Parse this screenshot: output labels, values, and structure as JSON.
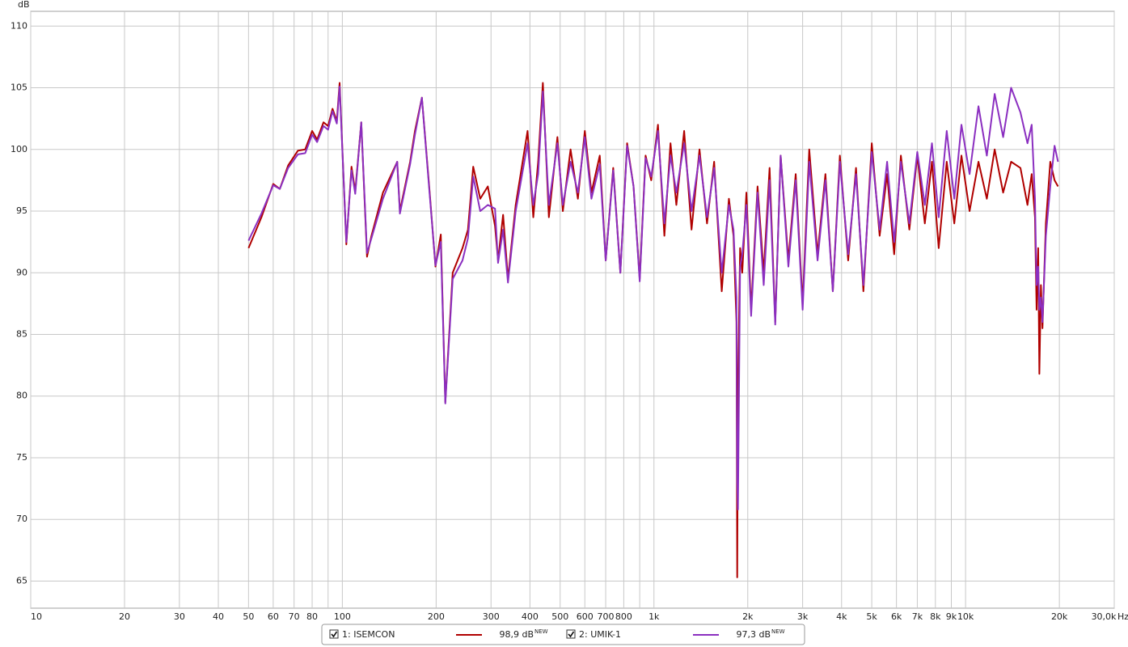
{
  "chart_data": {
    "type": "line",
    "y_label": "dB",
    "x_label": "Hz",
    "x_scale": "log",
    "grid": true,
    "xlim": [
      10,
      30000
    ],
    "ylim": [
      62.8,
      111.2
    ],
    "yticks": [
      65,
      70,
      75,
      80,
      85,
      90,
      95,
      100,
      105,
      110
    ],
    "xticks": [
      10,
      20,
      30,
      40,
      50,
      60,
      70,
      80,
      100,
      200,
      300,
      400,
      500,
      600,
      700,
      800,
      {
        "value": 1000,
        "label": "1k"
      },
      {
        "value": 2000,
        "label": "2k"
      },
      {
        "value": 3000,
        "label": "3k"
      },
      {
        "value": 4000,
        "label": "4k"
      },
      {
        "value": 5000,
        "label": "5k"
      },
      {
        "value": 6000,
        "label": "6k"
      },
      {
        "value": 7000,
        "label": "7k"
      },
      {
        "value": 8000,
        "label": "8k"
      },
      {
        "value": 9000,
        "label": "9k"
      },
      {
        "value": 10000,
        "label": "10k"
      },
      {
        "value": 20000,
        "label": "20k"
      },
      {
        "value": 30000,
        "label": "30,0k"
      }
    ],
    "xminor": [
      90,
      900
    ],
    "x": [
      50,
      55,
      60,
      63,
      67,
      72,
      76,
      80,
      83,
      87,
      90,
      93,
      96,
      98,
      103,
      107,
      110,
      115,
      120,
      124,
      135,
      150,
      153,
      165,
      171,
      180,
      190,
      199,
      207,
      214,
      226,
      243,
      253,
      263,
      277,
      293,
      309,
      316,
      328,
      340,
      360,
      393,
      410,
      425,
      440,
      460,
      490,
      510,
      540,
      570,
      600,
      630,
      670,
      700,
      740,
      780,
      820,
      860,
      900,
      940,
      980,
      1030,
      1080,
      1130,
      1180,
      1250,
      1320,
      1400,
      1480,
      1560,
      1650,
      1740,
      1800,
      1840,
      1850,
      1860,
      1890,
      1920,
      1980,
      2050,
      2150,
      2250,
      2350,
      2450,
      2550,
      2700,
      2850,
      3000,
      3150,
      3350,
      3550,
      3750,
      3950,
      4200,
      4450,
      4700,
      5000,
      5300,
      5600,
      5900,
      6200,
      6600,
      7000,
      7400,
      7800,
      8200,
      8700,
      9200,
      9700,
      10300,
      11000,
      11700,
      12400,
      13200,
      14000,
      15000,
      15800,
      16300,
      16700,
      16900,
      17100,
      17250,
      17450,
      17650,
      18100,
      18700,
      19300,
      19800
    ],
    "series": [
      {
        "name": "1: ISEMCON",
        "color": "#b00000",
        "level_label": "98,9 dB",
        "level_badge": "NEW",
        "values": [
          92.0,
          94.5,
          97.2,
          96.8,
          98.7,
          99.9,
          100.0,
          101.5,
          100.8,
          102.2,
          101.9,
          103.3,
          102.3,
          105.4,
          92.3,
          98.6,
          96.6,
          102.2,
          91.3,
          93.0,
          96.5,
          99.0,
          95.0,
          99.0,
          101.5,
          104.2,
          97.0,
          90.5,
          93.1,
          79.5,
          90.0,
          92.0,
          93.5,
          98.6,
          96.0,
          97.0,
          93.8,
          91.0,
          94.7,
          89.5,
          95.5,
          101.5,
          94.5,
          99.0,
          105.4,
          94.5,
          101.0,
          95.0,
          100.0,
          96.0,
          101.5,
          96.5,
          99.5,
          91.0,
          98.5,
          90.0,
          100.5,
          97.0,
          89.5,
          99.5,
          97.5,
          102.0,
          93.0,
          100.5,
          95.5,
          101.5,
          93.5,
          100.0,
          94.0,
          99.0,
          88.5,
          96.0,
          93.0,
          86.0,
          65.3,
          80.5,
          92.0,
          90.0,
          96.5,
          87.0,
          97.0,
          90.0,
          98.5,
          86.0,
          99.5,
          91.0,
          98.0,
          87.5,
          100.0,
          91.5,
          98.0,
          88.5,
          99.5,
          91.0,
          98.5,
          88.5,
          100.5,
          93.0,
          98.0,
          91.5,
          99.5,
          93.5,
          99.5,
          94.0,
          99.0,
          92.0,
          99.0,
          94.0,
          99.5,
          95.0,
          99.0,
          96.0,
          100.0,
          96.5,
          99.0,
          98.5,
          95.5,
          98.0,
          94.5,
          87.0,
          92.0,
          81.8,
          89.0,
          85.5,
          94.0,
          99.0,
          97.5,
          97.0
        ]
      },
      {
        "name": "2: UMIK-1",
        "color": "#8b2fc0",
        "level_label": "97,3 dB",
        "level_badge": "NEW",
        "values": [
          92.6,
          94.8,
          97.1,
          96.8,
          98.5,
          99.6,
          99.7,
          101.2,
          100.6,
          101.9,
          101.6,
          103.1,
          102.1,
          105.1,
          92.5,
          98.3,
          96.4,
          102.2,
          91.6,
          92.8,
          96.0,
          99.0,
          94.8,
          98.8,
          101.2,
          104.2,
          96.8,
          90.6,
          92.5,
          79.4,
          89.5,
          91.0,
          92.8,
          97.8,
          95.0,
          95.5,
          95.2,
          90.8,
          93.5,
          89.2,
          95.0,
          100.5,
          95.5,
          98.0,
          104.7,
          95.5,
          100.5,
          95.5,
          99.0,
          96.5,
          101.0,
          96.0,
          98.8,
          91.0,
          98.3,
          90.0,
          100.3,
          97.0,
          89.3,
          99.3,
          97.8,
          101.5,
          94.0,
          99.5,
          96.5,
          100.5,
          95.0,
          99.5,
          94.5,
          98.5,
          90.0,
          95.5,
          93.5,
          88.0,
          73.0,
          70.8,
          90.5,
          91.5,
          95.5,
          86.5,
          96.5,
          89.0,
          97.5,
          85.8,
          99.5,
          90.5,
          97.5,
          87.0,
          99.0,
          91.0,
          97.5,
          88.5,
          99.0,
          91.5,
          98.0,
          89.0,
          99.8,
          93.5,
          99.0,
          92.5,
          99.0,
          94.0,
          99.8,
          95.5,
          100.5,
          94.5,
          101.5,
          96.0,
          102.0,
          98.0,
          103.5,
          99.5,
          104.5,
          101.0,
          105.0,
          103.0,
          100.5,
          102.0,
          96.0,
          89.0,
          90.5,
          87.0,
          88.0,
          86.0,
          93.0,
          97.0,
          100.3,
          99.0
        ]
      }
    ]
  }
}
